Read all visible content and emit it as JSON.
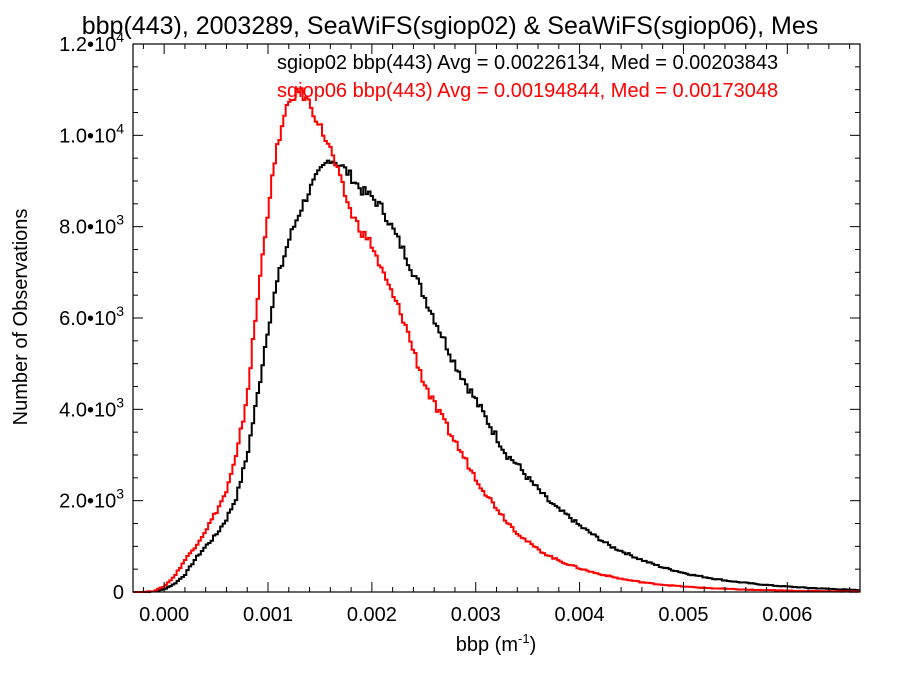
{
  "chart_data": {
    "type": "line",
    "title": "bbp(443), 2003289, SeaWiFS(sgiop02) & SeaWiFS(sgiop06), Mes",
    "xlabel": "bbp (m",
    "xlabel_sup": "-1",
    "xlabel_close": ")",
    "ylabel": "Number of Observations",
    "xlim": [
      -0.0003,
      0.0067
    ],
    "ylim": [
      0,
      12000
    ],
    "xticks": [
      0.0,
      0.001,
      0.002,
      0.003,
      0.004,
      0.005,
      0.006
    ],
    "xtick_labels": [
      "0.000",
      "0.001",
      "0.002",
      "0.003",
      "0.004",
      "0.005",
      "0.006"
    ],
    "yticks": [
      0,
      2000,
      4000,
      6000,
      8000,
      10000,
      12000
    ],
    "ytick_labels": [
      {
        "base": "0",
        "exp": ""
      },
      {
        "base": "2.0•10",
        "exp": "3"
      },
      {
        "base": "4.0•10",
        "exp": "3"
      },
      {
        "base": "6.0•10",
        "exp": "3"
      },
      {
        "base": "8.0•10",
        "exp": "3"
      },
      {
        "base": "1.0•10",
        "exp": "4"
      },
      {
        "base": "1.2•10",
        "exp": "4"
      }
    ],
    "legend_placement": "top-right",
    "annotations": [
      {
        "text": "sgiop02 bbp(443) Avg = 0.00226134, Med = 0.00203843",
        "color": "#000000"
      },
      {
        "text": "sgiop06 bbp(443) Avg = 0.00194844, Med = 0.00173048",
        "color": "#ff0000"
      }
    ],
    "series": [
      {
        "color": "#000000",
        "x": [
          -0.0003,
          -0.0002,
          -0.0001,
          0.0,
          0.0001,
          0.0002,
          0.0003,
          0.0004,
          0.0005,
          0.0006,
          0.0007,
          0.0008,
          0.0009,
          0.001,
          0.0011,
          0.0012,
          0.0013,
          0.0014,
          0.0015,
          0.0016,
          0.0017,
          0.0018,
          0.0019,
          0.002,
          0.0021,
          0.0022,
          0.0023,
          0.0024,
          0.0025,
          0.0026,
          0.0027,
          0.0028,
          0.0029,
          0.003,
          0.0031,
          0.0032,
          0.0033,
          0.0034,
          0.0035,
          0.0036,
          0.0037,
          0.0038,
          0.0039,
          0.004,
          0.0041,
          0.0042,
          0.0043,
          0.0044,
          0.0045,
          0.0046,
          0.0047,
          0.0048,
          0.0049,
          0.005,
          0.0051,
          0.0052,
          0.0053,
          0.0054,
          0.0055,
          0.0056,
          0.0057,
          0.0058,
          0.0059,
          0.006,
          0.0061,
          0.0062,
          0.0063,
          0.0064,
          0.0065,
          0.0066,
          0.0067
        ],
        "y": [
          0,
          0,
          10,
          60,
          180,
          380,
          720,
          1000,
          1250,
          1600,
          2100,
          3000,
          4300,
          5800,
          6900,
          7700,
          8300,
          8800,
          9200,
          9500,
          9350,
          9100,
          8800,
          8650,
          8400,
          7950,
          7500,
          7000,
          6500,
          6000,
          5500,
          5000,
          4600,
          4200,
          3800,
          3400,
          3000,
          2800,
          2500,
          2250,
          2000,
          1800,
          1650,
          1450,
          1300,
          1150,
          1000,
          900,
          800,
          700,
          620,
          540,
          480,
          420,
          370,
          330,
          290,
          255,
          225,
          200,
          175,
          155,
          135,
          120,
          105,
          90,
          80,
          70,
          60,
          50,
          40
        ]
      },
      {
        "color": "#ff0000",
        "x": [
          -0.0003,
          -0.0002,
          -0.0001,
          0.0,
          0.0001,
          0.0002,
          0.0003,
          0.0004,
          0.0005,
          0.0006,
          0.0007,
          0.0008,
          0.0009,
          0.001,
          0.0011,
          0.0012,
          0.0013,
          0.0014,
          0.0015,
          0.0016,
          0.0017,
          0.0018,
          0.0019,
          0.002,
          0.0021,
          0.0022,
          0.0023,
          0.0024,
          0.0025,
          0.0026,
          0.0027,
          0.0028,
          0.0029,
          0.003,
          0.0031,
          0.0032,
          0.0033,
          0.0034,
          0.0035,
          0.0036,
          0.0037,
          0.0038,
          0.0039,
          0.004,
          0.0041,
          0.0042,
          0.0043,
          0.0044,
          0.0045,
          0.0046,
          0.0047,
          0.0048,
          0.0049,
          0.005,
          0.0051,
          0.0052,
          0.0053,
          0.0054,
          0.0055,
          0.0056,
          0.0057,
          0.0058,
          0.0059,
          0.006,
          0.0061,
          0.0062,
          0.0063,
          0.0064,
          0.0065,
          0.0066,
          0.0067
        ],
        "y": [
          0,
          0,
          20,
          120,
          350,
          700,
          1000,
          1350,
          1750,
          2200,
          3000,
          4300,
          6400,
          8400,
          9900,
          10700,
          11000,
          10700,
          10200,
          9700,
          9000,
          8300,
          7900,
          7600,
          7000,
          6500,
          6000,
          5300,
          4600,
          4100,
          3700,
          3300,
          2900,
          2500,
          2150,
          1850,
          1550,
          1300,
          1100,
          930,
          800,
          690,
          600,
          520,
          450,
          390,
          340,
          290,
          250,
          215,
          185,
          160,
          140,
          120,
          105,
          90,
          80,
          70,
          60,
          52,
          45,
          40,
          35,
          30,
          26,
          22,
          20,
          17,
          15,
          12,
          10
        ]
      }
    ]
  }
}
